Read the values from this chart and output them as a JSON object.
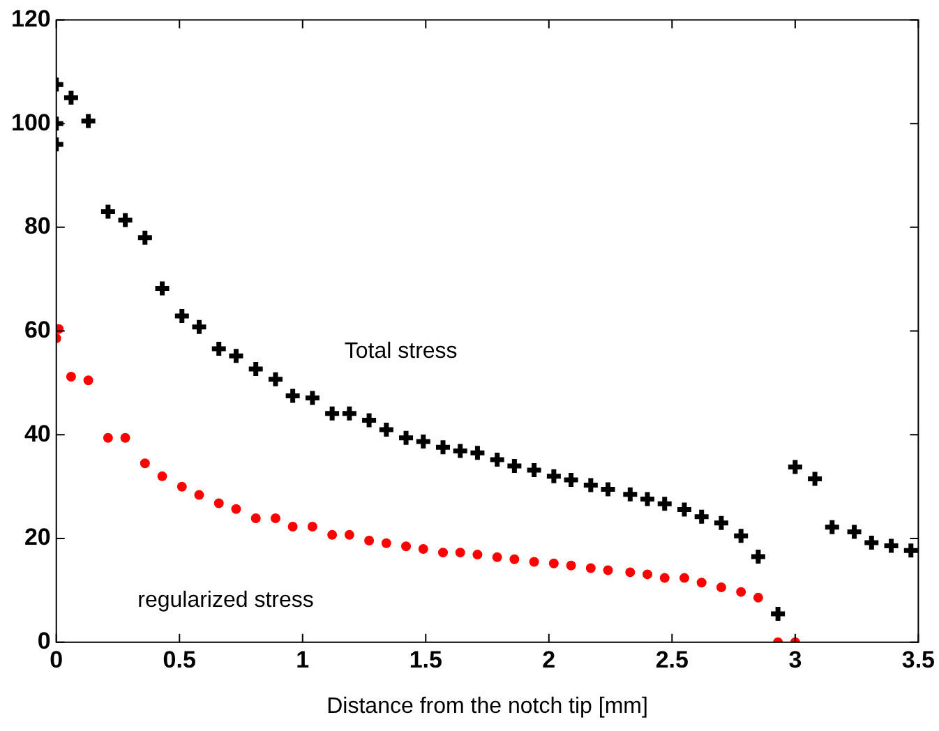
{
  "chart_data": {
    "type": "scatter",
    "xlabel": "Distance from the notch tip [mm]",
    "xlim": [
      0,
      3.5
    ],
    "xticks": [
      0,
      0.5,
      1,
      1.5,
      2,
      2.5,
      3,
      3.5
    ],
    "ylim": [
      0,
      120
    ],
    "yticks": [
      0,
      20,
      40,
      60,
      80,
      100,
      120
    ],
    "grid": false,
    "legend": false,
    "series": [
      {
        "name": "Total stress",
        "color": "#000000",
        "marker": "cross",
        "x": [
          0,
          0,
          0,
          0.06,
          0.13,
          0.21,
          0.28,
          0.36,
          0.43,
          0.51,
          0.58,
          0.66,
          0.73,
          0.81,
          0.89,
          0.96,
          1.04,
          1.12,
          1.19,
          1.27,
          1.34,
          1.42,
          1.49,
          1.57,
          1.64,
          1.71,
          1.79,
          1.86,
          1.94,
          2.02,
          2.09,
          2.17,
          2.24,
          2.33,
          2.4,
          2.47,
          2.55,
          2.62,
          2.7,
          2.78,
          2.85,
          2.93,
          3.0,
          3.08,
          3.15,
          3.24,
          3.31,
          3.39,
          3.47
        ],
        "values": [
          96,
          100,
          107.5,
          105,
          100.5,
          83,
          81.4,
          78,
          68.2,
          62.9,
          60.8,
          56.6,
          55.2,
          52.7,
          50.7,
          47.5,
          47.1,
          44.1,
          44.1,
          42.8,
          41,
          39.4,
          38.7,
          37.6,
          36.9,
          36.5,
          35.2,
          34,
          33.2,
          32,
          31.3,
          30.3,
          29.5,
          28.5,
          27.6,
          26.7,
          25.6,
          24.2,
          23,
          20.5,
          16.5,
          5.5,
          33.8,
          31.5,
          22.2,
          21.3,
          19.2,
          18.6,
          17.7
        ]
      },
      {
        "name": "regularized stress",
        "color": "#ff0000",
        "marker": "circle",
        "x": [
          0,
          0.01,
          0.06,
          0.13,
          0.21,
          0.28,
          0.36,
          0.43,
          0.51,
          0.58,
          0.66,
          0.73,
          0.81,
          0.89,
          0.96,
          1.04,
          1.12,
          1.19,
          1.27,
          1.34,
          1.42,
          1.49,
          1.57,
          1.64,
          1.71,
          1.79,
          1.86,
          1.94,
          2.02,
          2.09,
          2.17,
          2.24,
          2.33,
          2.4,
          2.47,
          2.55,
          2.62,
          2.7,
          2.78,
          2.85,
          2.93,
          3.0
        ],
        "values": [
          58.6,
          60.4,
          51.2,
          50.5,
          39.4,
          39.4,
          34.5,
          32,
          30,
          28.4,
          26.8,
          25.7,
          23.9,
          23.9,
          22.3,
          22.3,
          20.7,
          20.7,
          19.6,
          19.1,
          18.5,
          18,
          17.3,
          17.3,
          16.9,
          16.4,
          16,
          15.5,
          15.2,
          14.8,
          14.3,
          13.9,
          13.5,
          13.1,
          12.4,
          12.4,
          11.5,
          10.6,
          9.7,
          8.6,
          0,
          0
        ]
      }
    ]
  }
}
